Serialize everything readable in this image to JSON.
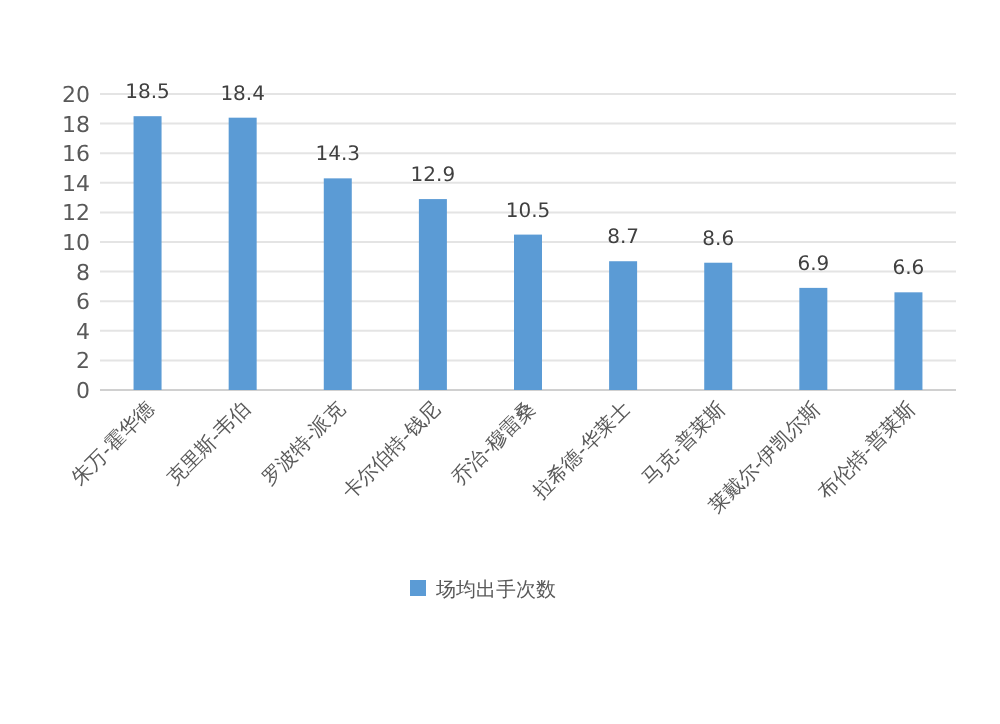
{
  "chart_data": {
    "type": "bar",
    "categories": [
      "朱万-霍华德",
      "克里斯-韦伯",
      "罗波特-派克",
      "卡尔伯特-钱尼",
      "乔治-穆雷桑",
      "拉希德-华莱士",
      "马克-普莱斯",
      "莱戴尔-伊凯尔斯",
      "布伦特-普莱斯"
    ],
    "series": [
      {
        "name": "场均出手次数",
        "color": "#5b9bd5",
        "values": [
          18.5,
          18.4,
          14.3,
          12.9,
          10.5,
          8.7,
          8.6,
          6.9,
          6.6
        ]
      }
    ],
    "ylim": [
      0,
      20
    ],
    "yticks": [
      0,
      2,
      4,
      6,
      8,
      10,
      12,
      14,
      16,
      18,
      20
    ],
    "grid": "y",
    "data_labels": true,
    "legend": "bottom"
  }
}
